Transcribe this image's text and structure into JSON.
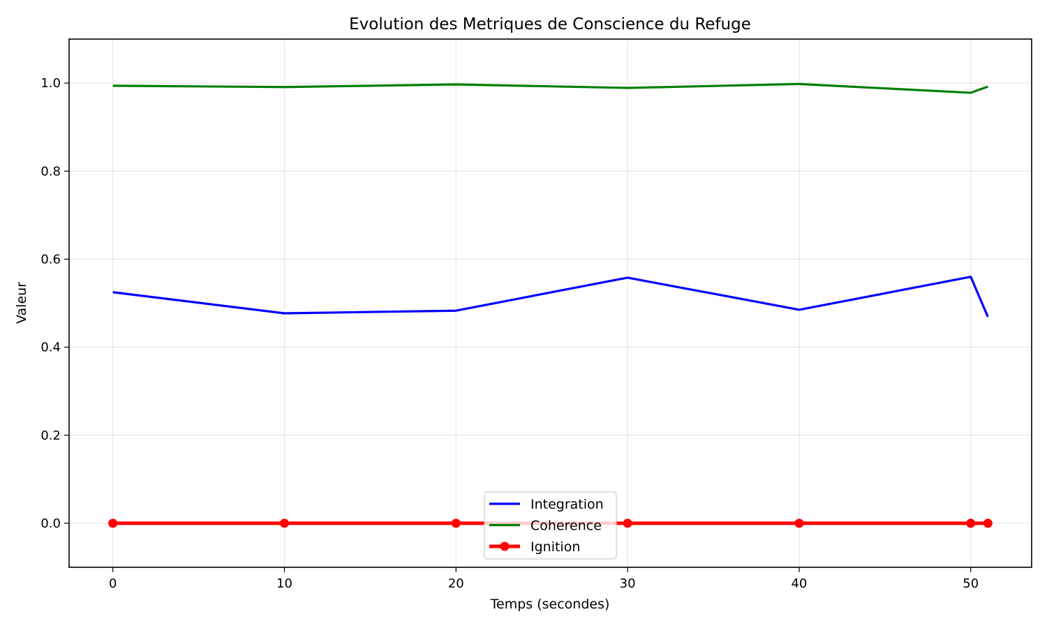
{
  "chart_data": {
    "type": "line",
    "title": "Evolution des Metriques de Conscience du Refuge",
    "xlabel": "Temps (secondes)",
    "ylabel": "Valeur",
    "xlim": [
      -2.55,
      53.55
    ],
    "ylim": [
      -0.1,
      1.1
    ],
    "xticks": [
      0,
      10,
      20,
      30,
      40,
      50
    ],
    "xtick_labels": [
      "0",
      "10",
      "20",
      "30",
      "40",
      "50"
    ],
    "yticks": [
      0.0,
      0.2,
      0.4,
      0.6,
      0.8,
      1.0
    ],
    "ytick_labels": [
      "0.0",
      "0.2",
      "0.4",
      "0.6",
      "0.8",
      "1.0"
    ],
    "grid": true,
    "legend_position": "bottom-center",
    "series": [
      {
        "name": "Integration",
        "color": "#0000ff",
        "marker": "none",
        "x": [
          0,
          10,
          20,
          30,
          40,
          50,
          51
        ],
        "y": [
          0.525,
          0.477,
          0.483,
          0.558,
          0.485,
          0.56,
          0.469
        ]
      },
      {
        "name": "Coherence",
        "color": "#008000",
        "marker": "none",
        "x": [
          0,
          10,
          20,
          30,
          40,
          50,
          51
        ],
        "y": [
          0.994,
          0.991,
          0.997,
          0.989,
          0.998,
          0.978,
          0.992
        ]
      },
      {
        "name": "Ignition",
        "color": "#ff0000",
        "marker": "circle",
        "x": [
          0,
          10,
          20,
          30,
          40,
          50,
          51
        ],
        "y": [
          0,
          0,
          0,
          0,
          0,
          0,
          0
        ]
      }
    ]
  }
}
